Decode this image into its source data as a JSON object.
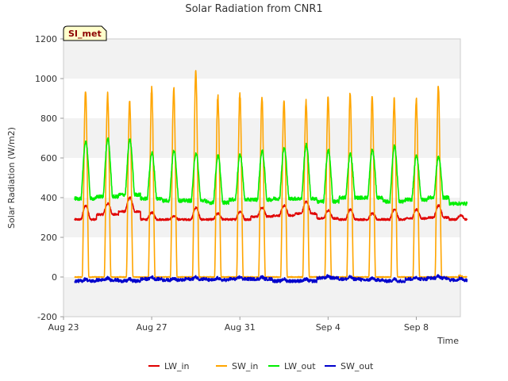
{
  "chart_data": {
    "type": "line",
    "title": "Solar Radiation from CNR1",
    "badge": "SI_met",
    "xlabel": "Time",
    "ylabel": "Solar Radiation (W/m2)",
    "ylim": [
      -200,
      1200
    ],
    "y_ticks": [
      -200,
      0,
      200,
      400,
      600,
      800,
      1000,
      1200
    ],
    "xlim": [
      "2023-08-23",
      "2023-09-10"
    ],
    "x_ticks": [
      {
        "date": "2023-08-23",
        "label": "Aug 23"
      },
      {
        "date": "2023-08-27",
        "label": "Aug 27"
      },
      {
        "date": "2023-08-31",
        "label": "Aug 31"
      },
      {
        "date": "2023-09-04",
        "label": "Sep 4"
      },
      {
        "date": "2023-09-08",
        "label": "Sep 8"
      }
    ],
    "grid": "horizontal bands",
    "legend_position": "bottom",
    "daily_start": "2023-08-23",
    "series": [
      {
        "name": "LW_in",
        "color": "#e00000",
        "kind": "lw_in",
        "night": [
          290,
          315,
          330,
          290,
          290,
          290,
          290,
          290,
          305,
          310,
          320,
          295,
          290,
          290,
          290,
          295,
          300,
          290
        ],
        "day": [
          360,
          370,
          400,
          325,
          305,
          350,
          320,
          330,
          350,
          360,
          380,
          335,
          340,
          320,
          340,
          340,
          360,
          310
        ]
      },
      {
        "name": "SW_in",
        "color": "#ffa500",
        "kind": "sw_in",
        "day": [
          945,
          920,
          890,
          950,
          950,
          1045,
          915,
          925,
          905,
          890,
          890,
          910,
          920,
          905,
          895,
          900,
          955,
          0
        ]
      },
      {
        "name": "LW_out",
        "color": "#00ee00",
        "kind": "lw_out",
        "night": [
          395,
          405,
          415,
          395,
          385,
          385,
          375,
          390,
          390,
          395,
          395,
          380,
          400,
          400,
          380,
          390,
          400,
          370
        ],
        "day": [
          685,
          695,
          690,
          625,
          635,
          625,
          610,
          615,
          635,
          650,
          665,
          640,
          620,
          640,
          660,
          610,
          605,
          370
        ]
      },
      {
        "name": "SW_out",
        "color": "#0000cc",
        "kind": "sw_out",
        "night": [
          -20,
          -15,
          -20,
          -10,
          -15,
          -10,
          -15,
          -10,
          -10,
          -20,
          -20,
          -5,
          -10,
          -15,
          -20,
          -10,
          -5,
          -15
        ]
      }
    ]
  }
}
